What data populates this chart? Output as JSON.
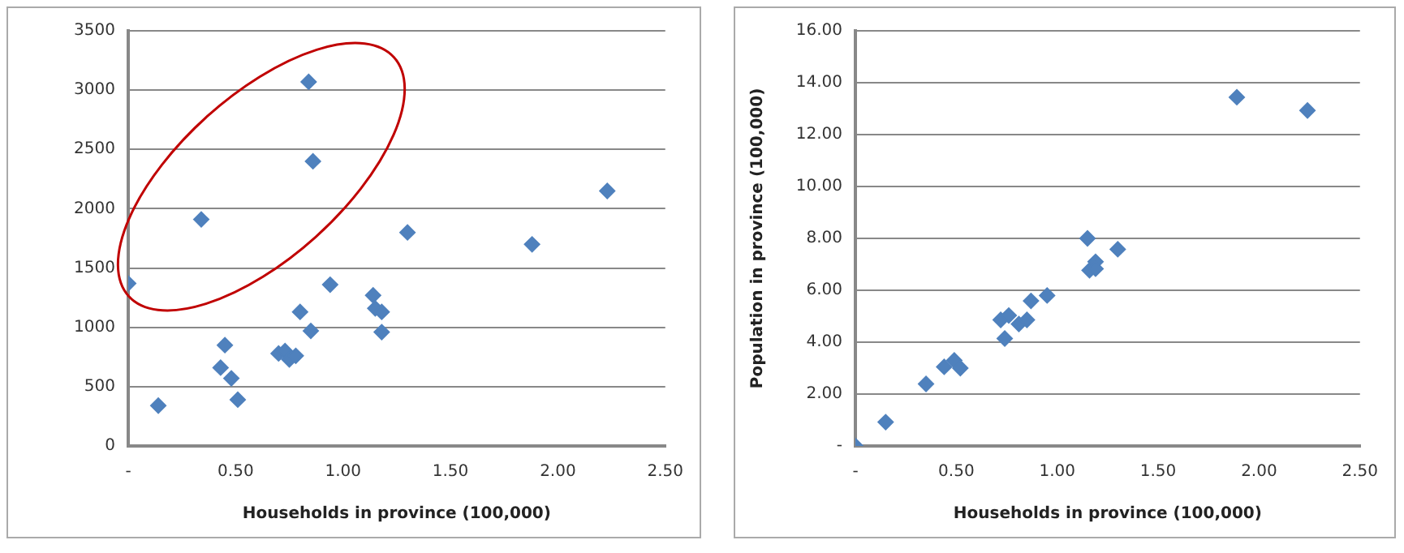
{
  "chart_data": [
    {
      "type": "scatter",
      "xlabel": "Households in province (100,000)",
      "color": "#4f81bd",
      "marker": "diamond",
      "grid": "y",
      "x": [
        0,
        0.14,
        0.34,
        0.43,
        0.45,
        0.48,
        0.51,
        0.7,
        0.73,
        0.75,
        0.78,
        0.8,
        0.84,
        0.85,
        0.86,
        0.94,
        1.14,
        1.15,
        1.18,
        1.18,
        1.3,
        1.88,
        2.23
      ],
      "values": [
        1370,
        340,
        1910,
        660,
        850,
        570,
        390,
        780,
        800,
        730,
        760,
        1130,
        3070,
        970,
        2400,
        1360,
        1270,
        1160,
        1130,
        960,
        1800,
        1700,
        2150
      ],
      "xlim": [
        0,
        2.5
      ],
      "ylim": [
        0,
        3500
      ],
      "xticks": [
        {
          "value": 0,
          "label": "-"
        },
        {
          "value": 0.5,
          "label": "0.50"
        },
        {
          "value": 1,
          "label": "1.00"
        },
        {
          "value": 1.5,
          "label": "1.50"
        },
        {
          "value": 2,
          "label": "2.00"
        },
        {
          "value": 2.5,
          "label": "2.50"
        }
      ],
      "yticks": [
        0,
        500,
        1000,
        1500,
        2000,
        2500,
        3000,
        3500
      ]
    },
    {
      "type": "scatter",
      "xlabel": "Households in province (100,000)",
      "ylabel": "Population in province (100,000)",
      "color": "#4f81bd",
      "marker": "diamond",
      "grid": "y",
      "x": [
        0,
        0.15,
        0.35,
        0.44,
        0.49,
        0.52,
        0.72,
        0.74,
        0.76,
        0.81,
        0.85,
        0.87,
        0.95,
        1.15,
        1.16,
        1.19,
        1.19,
        1.3,
        1.89,
        2.24
      ],
      "values": [
        0,
        0.92,
        2.39,
        3.05,
        3.3,
        3.0,
        4.86,
        4.14,
        5.03,
        4.7,
        4.86,
        5.59,
        5.8,
        8.0,
        6.77,
        7.1,
        6.83,
        7.58,
        13.44,
        12.93
      ],
      "xlim": [
        0,
        2.5
      ],
      "ylim": [
        0,
        16
      ],
      "xticks": [
        {
          "value": 0,
          "label": "-"
        },
        {
          "value": 0.5,
          "label": "0.50"
        },
        {
          "value": 1,
          "label": "1.00"
        },
        {
          "value": 1.5,
          "label": "1.50"
        },
        {
          "value": 2,
          "label": "2.00"
        },
        {
          "value": 2.5,
          "label": "2.50"
        }
      ],
      "yticks": [
        {
          "value": 0,
          "label": "-"
        },
        {
          "value": 2,
          "label": "2.00"
        },
        {
          "value": 4,
          "label": "4.00"
        },
        {
          "value": 6,
          "label": "6.00"
        },
        {
          "value": 8,
          "label": "8.00"
        },
        {
          "value": 10,
          "label": "10.00"
        },
        {
          "value": 12,
          "label": "12.00"
        },
        {
          "value": 14,
          "label": "14.00"
        },
        {
          "value": 16,
          "label": "16.00"
        }
      ]
    }
  ]
}
